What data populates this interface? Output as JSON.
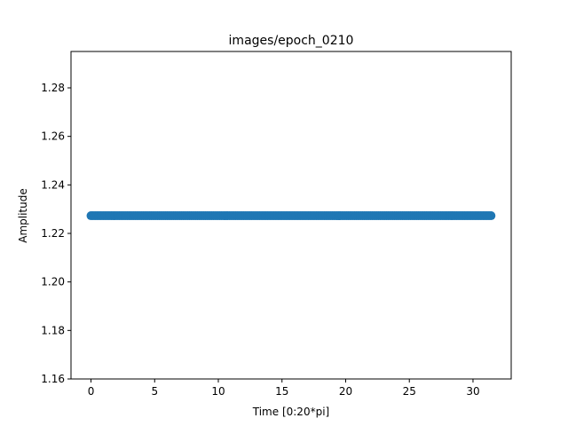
{
  "chart_data": {
    "type": "scatter",
    "title": "images/epoch_0210",
    "xlabel": "Time [0:20*pi]",
    "ylabel": "Amplitude",
    "xlim": [
      -1.57,
      33.0
    ],
    "ylim": [
      1.16,
      1.295
    ],
    "xticks": [
      0,
      5,
      10,
      15,
      20,
      25,
      30
    ],
    "yticks": [
      1.16,
      1.18,
      1.2,
      1.22,
      1.24,
      1.26,
      1.28
    ],
    "ytick_labels": [
      "1.16",
      "1.18",
      "1.20",
      "1.22",
      "1.24",
      "1.26",
      "1.28"
    ],
    "grid": false,
    "series": [
      {
        "color": "#1f77b4",
        "x_start": 0,
        "x_end": 31.4159,
        "n_points": 200,
        "y_constant": 1.2273
      }
    ]
  }
}
